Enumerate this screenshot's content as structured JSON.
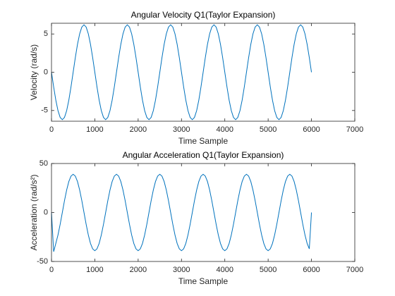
{
  "chart_data": [
    {
      "type": "line",
      "title": "Angular Velocity Q1(Taylor Expansion)",
      "xlabel": "Time Sample",
      "ylabel": "Velocity (rad/s)",
      "color": "#0072bd",
      "xlim": [
        0,
        7000
      ],
      "xticks": [
        0,
        1000,
        2000,
        3000,
        4000,
        5000,
        6000,
        7000
      ],
      "ylim": [
        -6.4,
        6.4
      ],
      "yticks": [
        -5,
        0,
        5
      ],
      "x": [
        0,
        50,
        100,
        150,
        200,
        250,
        300,
        350,
        400,
        450,
        500,
        550,
        600,
        650,
        700,
        750,
        800,
        850,
        900,
        950,
        1000,
        1050,
        1100,
        1150,
        1200,
        1250,
        1300,
        1350,
        1400,
        1450,
        1500,
        1550,
        1600,
        1650,
        1700,
        1750,
        1800,
        1850,
        1900,
        1950,
        2000,
        2050,
        2100,
        2150,
        2200,
        2250,
        2300,
        2350,
        2400,
        2450,
        2500,
        2550,
        2600,
        2650,
        2700,
        2750,
        2800,
        2850,
        2900,
        2950,
        3000,
        3050,
        3100,
        3150,
        3200,
        3250,
        3300,
        3350,
        3400,
        3450,
        3500,
        3550,
        3600,
        3650,
        3700,
        3750,
        3800,
        3850,
        3900,
        3950,
        4000,
        4050,
        4100,
        4150,
        4200,
        4250,
        4300,
        4350,
        4400,
        4450,
        4500,
        4550,
        4600,
        4650,
        4700,
        4750,
        4800,
        4850,
        4900,
        4950,
        5000,
        5050,
        5100,
        5150,
        5200,
        5250,
        5300,
        5350,
        5400,
        5450,
        5500,
        5550,
        5600,
        5650,
        5700,
        5750,
        5800,
        5850,
        5900,
        5950,
        6000
      ],
      "values": [
        0,
        -1.92,
        -3.65,
        -5.02,
        -5.9,
        -6.2,
        -5.9,
        -5.02,
        -3.65,
        -1.92,
        0,
        1.92,
        3.65,
        5.02,
        5.9,
        6.2,
        5.9,
        5.02,
        3.65,
        1.92,
        0,
        -1.92,
        -3.65,
        -5.02,
        -5.9,
        -6.2,
        -5.9,
        -5.02,
        -3.65,
        -1.92,
        0,
        1.92,
        3.65,
        5.02,
        5.9,
        6.2,
        5.9,
        5.02,
        3.65,
        1.92,
        0,
        -1.92,
        -3.65,
        -5.02,
        -5.9,
        -6.2,
        -5.9,
        -5.02,
        -3.65,
        -1.92,
        0,
        1.92,
        3.65,
        5.02,
        5.9,
        6.2,
        5.9,
        5.02,
        3.65,
        1.92,
        0,
        -1.92,
        -3.65,
        -5.02,
        -5.9,
        -6.2,
        -5.9,
        -5.02,
        -3.65,
        -1.92,
        0,
        1.92,
        3.65,
        5.02,
        5.9,
        6.2,
        5.9,
        5.02,
        3.65,
        1.92,
        0,
        -1.92,
        -3.65,
        -5.02,
        -5.9,
        -6.2,
        -5.9,
        -5.02,
        -3.65,
        -1.92,
        0,
        1.92,
        3.65,
        5.02,
        5.9,
        6.2,
        5.9,
        5.02,
        3.65,
        1.92,
        0,
        -1.92,
        -3.65,
        -5.02,
        -5.9,
        -6.2,
        -5.9,
        -5.02,
        -3.65,
        -1.92,
        0,
        1.92,
        3.65,
        5.02,
        5.9,
        6.2,
        5.9,
        5.02,
        3.65,
        1.92,
        0
      ]
    },
    {
      "type": "line",
      "title": "Angular Acceleration Q1(Taylor Expansion)",
      "xlabel": "Time Sample",
      "ylabel": "Acceleration (rad/s²)",
      "color": "#0072bd",
      "xlim": [
        0,
        7000
      ],
      "xticks": [
        0,
        1000,
        2000,
        3000,
        4000,
        5000,
        6000,
        7000
      ],
      "ylim": [
        -50,
        50
      ],
      "yticks": [
        -50,
        0,
        50
      ],
      "x": [
        0,
        50,
        100,
        150,
        200,
        250,
        300,
        350,
        400,
        450,
        500,
        550,
        600,
        650,
        700,
        750,
        800,
        850,
        900,
        950,
        1000,
        1050,
        1100,
        1150,
        1200,
        1250,
        1300,
        1350,
        1400,
        1450,
        1500,
        1550,
        1600,
        1650,
        1700,
        1750,
        1800,
        1850,
        1900,
        1950,
        2000,
        2050,
        2100,
        2150,
        2200,
        2250,
        2300,
        2350,
        2400,
        2450,
        2500,
        2550,
        2600,
        2650,
        2700,
        2750,
        2800,
        2850,
        2900,
        2950,
        3000,
        3050,
        3100,
        3150,
        3200,
        3250,
        3300,
        3350,
        3400,
        3450,
        3500,
        3550,
        3600,
        3650,
        3700,
        3750,
        3800,
        3850,
        3900,
        3950,
        4000,
        4050,
        4100,
        4150,
        4200,
        4250,
        4300,
        4350,
        4400,
        4450,
        4500,
        4550,
        4600,
        4650,
        4700,
        4750,
        4800,
        4850,
        4900,
        4950,
        5000,
        5050,
        5100,
        5150,
        5200,
        5250,
        5300,
        5350,
        5400,
        5450,
        5500,
        5550,
        5600,
        5650,
        5700,
        5750,
        5800,
        5850,
        5900,
        5950,
        6000
      ],
      "values": [
        0,
        -40,
        -31.6,
        -22.9,
        -12.1,
        0,
        12.1,
        22.9,
        31.6,
        37.1,
        39,
        37.1,
        31.6,
        22.9,
        12.1,
        0,
        -12.1,
        -22.9,
        -31.6,
        -37.1,
        -39,
        -37.1,
        -31.6,
        -22.9,
        -12.1,
        0,
        12.1,
        22.9,
        31.6,
        37.1,
        39,
        37.1,
        31.6,
        22.9,
        12.1,
        0,
        -12.1,
        -22.9,
        -31.6,
        -37.1,
        -39,
        -37.1,
        -31.6,
        -22.9,
        -12.1,
        0,
        12.1,
        22.9,
        31.6,
        37.1,
        39,
        37.1,
        31.6,
        22.9,
        12.1,
        0,
        -12.1,
        -22.9,
        -31.6,
        -37.1,
        -39,
        -37.1,
        -31.6,
        -22.9,
        -12.1,
        0,
        12.1,
        22.9,
        31.6,
        37.1,
        39,
        37.1,
        31.6,
        22.9,
        12.1,
        0,
        -12.1,
        -22.9,
        -31.6,
        -37.1,
        -39,
        -37.1,
        -31.6,
        -22.9,
        -12.1,
        0,
        12.1,
        22.9,
        31.6,
        37.1,
        39,
        37.1,
        31.6,
        22.9,
        12.1,
        0,
        -12.1,
        -22.9,
        -31.6,
        -37.1,
        -39,
        -37.1,
        -31.6,
        -22.9,
        -12.1,
        0,
        12.1,
        22.9,
        31.6,
        37.1,
        39,
        37.1,
        31.6,
        22.9,
        12.1,
        0,
        -12.1,
        -22.9,
        -31.6,
        -37.1,
        0
      ]
    }
  ]
}
